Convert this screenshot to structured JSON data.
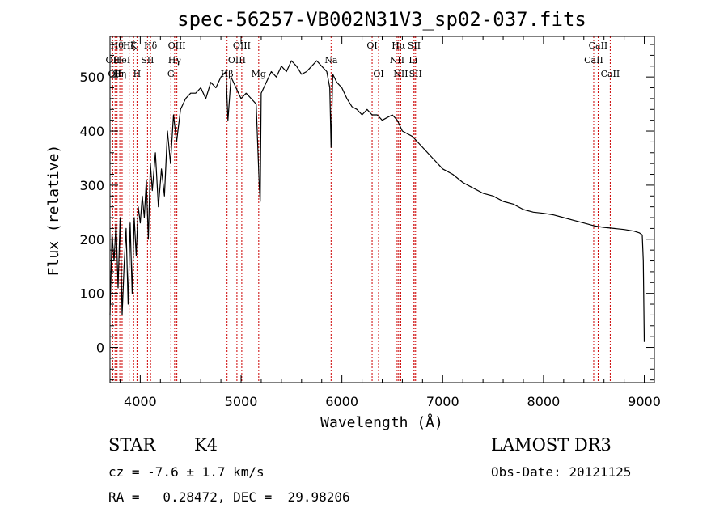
{
  "chart_data": {
    "type": "line",
    "title": "spec-56257-VB002N31V3_sp02-037.fits",
    "xlabel": "Wavelength (Å)",
    "ylabel": "Flux (relative)",
    "xlim": [
      3700,
      9100
    ],
    "ylim": [
      -65,
      575
    ],
    "xticks": [
      {
        "value": 4000,
        "label": "4000"
      },
      {
        "value": 5000,
        "label": "5000"
      },
      {
        "value": 6000,
        "label": "6000"
      },
      {
        "value": 7000,
        "label": "7000"
      },
      {
        "value": 8000,
        "label": "8000"
      },
      {
        "value": 9000,
        "label": "9000"
      }
    ],
    "yticks": [
      {
        "value": 0,
        "label": "0"
      },
      {
        "value": 100,
        "label": "100"
      },
      {
        "value": 200,
        "label": "200"
      },
      {
        "value": 300,
        "label": "300"
      },
      {
        "value": 400,
        "label": "400"
      },
      {
        "value": 500,
        "label": "500"
      }
    ],
    "series": [
      {
        "name": "flux",
        "color": "#000000",
        "x": [
          3700,
          3720,
          3740,
          3760,
          3780,
          3800,
          3820,
          3840,
          3860,
          3880,
          3900,
          3920,
          3940,
          3960,
          3980,
          4000,
          4020,
          4040,
          4060,
          4080,
          4100,
          4120,
          4150,
          4180,
          4210,
          4240,
          4270,
          4300,
          4330,
          4360,
          4400,
          4450,
          4500,
          4550,
          4600,
          4650,
          4700,
          4750,
          4800,
          4850,
          4870,
          4900,
          4950,
          5000,
          5050,
          5100,
          5150,
          5180,
          5190,
          5200,
          5250,
          5300,
          5350,
          5400,
          5450,
          5500,
          5550,
          5600,
          5650,
          5700,
          5750,
          5800,
          5850,
          5880,
          5893,
          5910,
          5950,
          6000,
          6050,
          6100,
          6150,
          6200,
          6250,
          6300,
          6350,
          6400,
          6450,
          6500,
          6550,
          6600,
          6650,
          6700,
          6750,
          6800,
          6900,
          7000,
          7100,
          7200,
          7300,
          7400,
          7500,
          7600,
          7700,
          7800,
          7900,
          8000,
          8100,
          8200,
          8300,
          8400,
          8500,
          8600,
          8700,
          8800,
          8900,
          8950,
          8980,
          8990,
          9000
        ],
        "y": [
          60,
          210,
          160,
          230,
          110,
          240,
          60,
          150,
          220,
          80,
          230,
          100,
          240,
          170,
          260,
          230,
          280,
          240,
          310,
          200,
          340,
          290,
          360,
          260,
          330,
          280,
          400,
          340,
          430,
          380,
          440,
          460,
          470,
          470,
          480,
          460,
          490,
          480,
          500,
          510,
          420,
          500,
          480,
          460,
          470,
          460,
          450,
          300,
          270,
          470,
          490,
          510,
          500,
          520,
          510,
          530,
          520,
          505,
          510,
          520,
          530,
          520,
          510,
          480,
          370,
          505,
          490,
          480,
          460,
          445,
          440,
          430,
          440,
          430,
          430,
          420,
          425,
          430,
          420,
          400,
          395,
          390,
          380,
          370,
          350,
          330,
          320,
          305,
          295,
          285,
          280,
          270,
          265,
          255,
          250,
          248,
          245,
          240,
          235,
          230,
          225,
          222,
          220,
          218,
          215,
          212,
          208,
          160,
          10
        ]
      }
    ],
    "lines": [
      {
        "wavelength": 3727,
        "label": "OII",
        "row": 1
      },
      {
        "wavelength": 3750,
        "label": "OII",
        "row": 2
      },
      {
        "wavelength": 3770,
        "label": "Hθ",
        "row": 0
      },
      {
        "wavelength": 3797,
        "label": "Hη",
        "row": 2
      },
      {
        "wavelength": 3820,
        "label": "HeI",
        "row": 1
      },
      {
        "wavelength": 3890,
        "label": "Hζ",
        "row": 0
      },
      {
        "wavelength": 3934,
        "label": "K",
        "row": 0
      },
      {
        "wavelength": 3968,
        "label": "H",
        "row": 2
      },
      {
        "wavelength": 4072,
        "label": "SII",
        "row": 1
      },
      {
        "wavelength": 4102,
        "label": "Hδ",
        "row": 0
      },
      {
        "wavelength": 4304,
        "label": "G",
        "row": 2
      },
      {
        "wavelength": 4341,
        "label": "Hγ",
        "row": 1
      },
      {
        "wavelength": 4363,
        "label": "OIII",
        "row": 0
      },
      {
        "wavelength": 4861,
        "label": "Hβ",
        "row": 2
      },
      {
        "wavelength": 4959,
        "label": "OIII",
        "row": 1
      },
      {
        "wavelength": 5007,
        "label": "OIII",
        "row": 0
      },
      {
        "wavelength": 5175,
        "label": "Mg",
        "row": 2
      },
      {
        "wavelength": 5893,
        "label": "Na",
        "row": 1
      },
      {
        "wavelength": 6300,
        "label": "OI",
        "row": 0
      },
      {
        "wavelength": 6364,
        "label": "OI",
        "row": 2
      },
      {
        "wavelength": 6548,
        "label": "NII",
        "row": 1
      },
      {
        "wavelength": 6563,
        "label": "Hα",
        "row": 0
      },
      {
        "wavelength": 6584,
        "label": "NII",
        "row": 2
      },
      {
        "wavelength": 6707,
        "label": "Li",
        "row": 1
      },
      {
        "wavelength": 6717,
        "label": "SII",
        "row": 0
      },
      {
        "wavelength": 6731,
        "label": "SII",
        "row": 2
      },
      {
        "wavelength": 8498,
        "label": "CaII",
        "row": 1
      },
      {
        "wavelength": 8542,
        "label": "CaII",
        "row": 0
      },
      {
        "wavelength": 8662,
        "label": "CaII",
        "row": 2
      }
    ],
    "line_color": "#cc0000"
  },
  "info": {
    "object_class": "STAR",
    "subclass": "K4",
    "survey": "LAMOST DR3",
    "velocity": "cz = -7.6 ± 1.7 km/s",
    "obs_date": "Obs-Date: 20121125",
    "coords": "RA =   0.28472, DEC =  29.98206"
  }
}
